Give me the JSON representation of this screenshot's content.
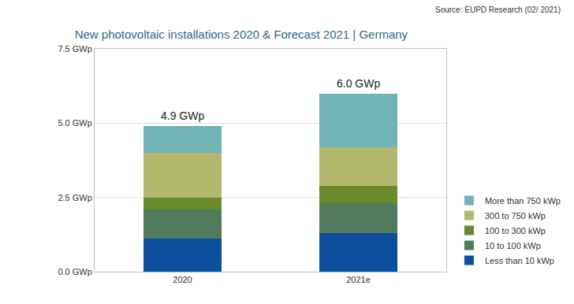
{
  "chart_data": {
    "type": "bar",
    "title": "New photovoltaic installations 2020 & Forecast 2021 | Germany",
    "source": "Source: EUPD Research (02/ 2021)",
    "categories": [
      "2020",
      "2021e"
    ],
    "series": [
      {
        "name": "Less than 10 kWp",
        "color": "#0b4f9e",
        "values": [
          1.1,
          1.3
        ]
      },
      {
        "name": "10 to 100 kWp",
        "color": "#527a5c",
        "values": [
          1.0,
          1.0
        ]
      },
      {
        "name": "100 to 300 kWp",
        "color": "#6a8a2c",
        "values": [
          0.4,
          0.6
        ]
      },
      {
        "name": "300 to 750 kWp",
        "color": "#b2b86e",
        "values": [
          1.5,
          1.3
        ]
      },
      {
        "name": "More than 750 kWp",
        "color": "#72b3b6",
        "values": [
          0.9,
          1.8
        ]
      }
    ],
    "totals": [
      4.9,
      6.0
    ],
    "total_labels": [
      "4.9 GWp",
      "6.0 GWp"
    ],
    "ylim": [
      0,
      7.5
    ],
    "yticks": [
      {
        "value": 0,
        "label": "0.0 GWp"
      },
      {
        "value": 2.5,
        "label": "2.5 GWp"
      },
      {
        "value": 5,
        "label": "5.0 GWp"
      },
      {
        "value": 7.5,
        "label": "7.5 GWp"
      }
    ],
    "stacked": true,
    "grid": true,
    "legend": "right"
  }
}
